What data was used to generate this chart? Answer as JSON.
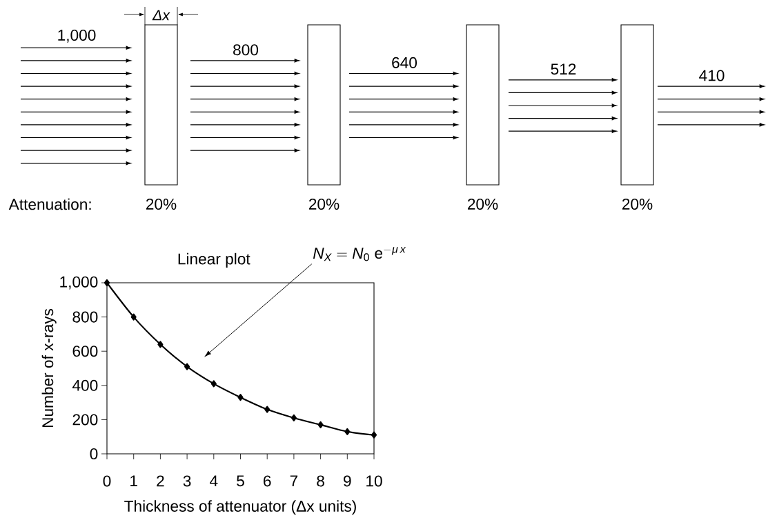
{
  "chart_data": [
    {
      "type": "other",
      "values": [
        1000,
        800,
        640,
        512,
        410
      ],
      "value_labels": [
        "1,000",
        "800",
        "640",
        "512",
        "410"
      ],
      "annotations": [
        "Δx",
        "Attenuation:",
        "20%",
        "20%",
        "20%",
        "20%"
      ]
    },
    {
      "type": "line",
      "title": "Linear plot",
      "xlabel": "Thickness of attenuator (Δx units)",
      "ylabel": "Number of x-rays",
      "x": [
        0,
        1,
        2,
        3,
        4,
        5,
        6,
        7,
        8,
        9,
        10
      ],
      "values": [
        1000,
        800,
        640,
        510,
        410,
        330,
        260,
        210,
        170,
        130,
        110
      ],
      "color": "#000000",
      "marker": "diamond",
      "xlim": [
        0,
        10
      ],
      "ylim": [
        0,
        1000
      ],
      "xticks": [
        0,
        1,
        2,
        3,
        4,
        5,
        6,
        7,
        8,
        9,
        10
      ],
      "yticks": [
        0,
        200,
        400,
        600,
        800,
        {
          "value": 1000,
          "label": "1,000"
        }
      ],
      "annotations": [
        "N_{X} = N_{0}\\ \\mathrm{e}^{-\\mu\\, x}"
      ]
    }
  ]
}
